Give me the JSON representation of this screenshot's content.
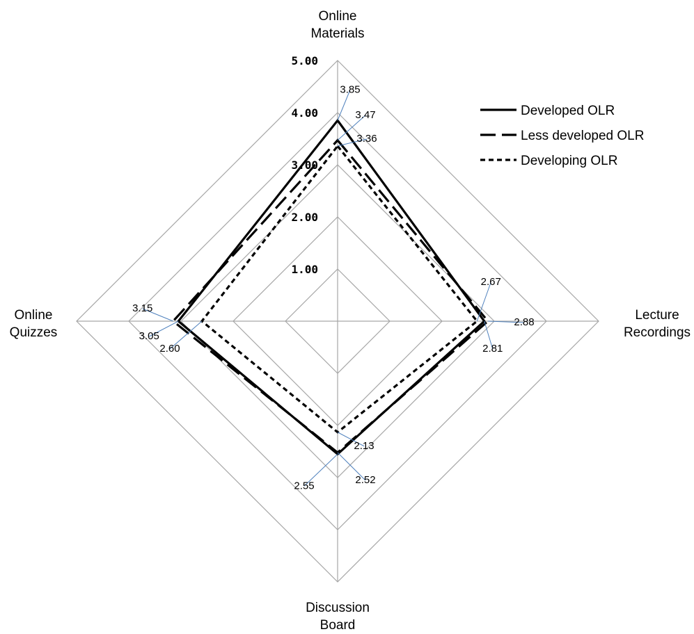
{
  "chart_data": {
    "type": "radar",
    "categories": [
      "Online Materials",
      "Lecture Recordings",
      "Discussion Board",
      "Online Quizzes"
    ],
    "category_lines": [
      [
        "Online",
        "Materials"
      ],
      [
        "Lecture",
        "Recordings"
      ],
      [
        "Discussion",
        "Board"
      ],
      [
        "Online",
        "Quizzes"
      ]
    ],
    "range": [
      0,
      5
    ],
    "ticks": [
      "1.00",
      "2.00",
      "3.00",
      "4.00",
      "5.00"
    ],
    "series": [
      {
        "name": "Developed OLR",
        "values": [
          3.85,
          2.81,
          2.55,
          3.05
        ],
        "labels": [
          "3.85",
          "2.81",
          "2.55",
          "3.05"
        ],
        "dash": "solid",
        "color": "#000000"
      },
      {
        "name": "Less developed OLR",
        "values": [
          3.47,
          2.88,
          2.52,
          3.15
        ],
        "labels": [
          "3.47",
          "2.88",
          "2.52",
          "3.15"
        ],
        "dash": "longdash",
        "color": "#000000"
      },
      {
        "name": "Developing OLR",
        "values": [
          3.36,
          2.67,
          2.13,
          2.6
        ],
        "labels": [
          "3.36",
          "2.67",
          "2.13",
          "2.60"
        ],
        "dash": "shortdash",
        "color": "#000000"
      }
    ],
    "grid": true,
    "legend": "top-right",
    "leader_color": "#4f81bd",
    "grid_color": "#a6a6a6"
  }
}
